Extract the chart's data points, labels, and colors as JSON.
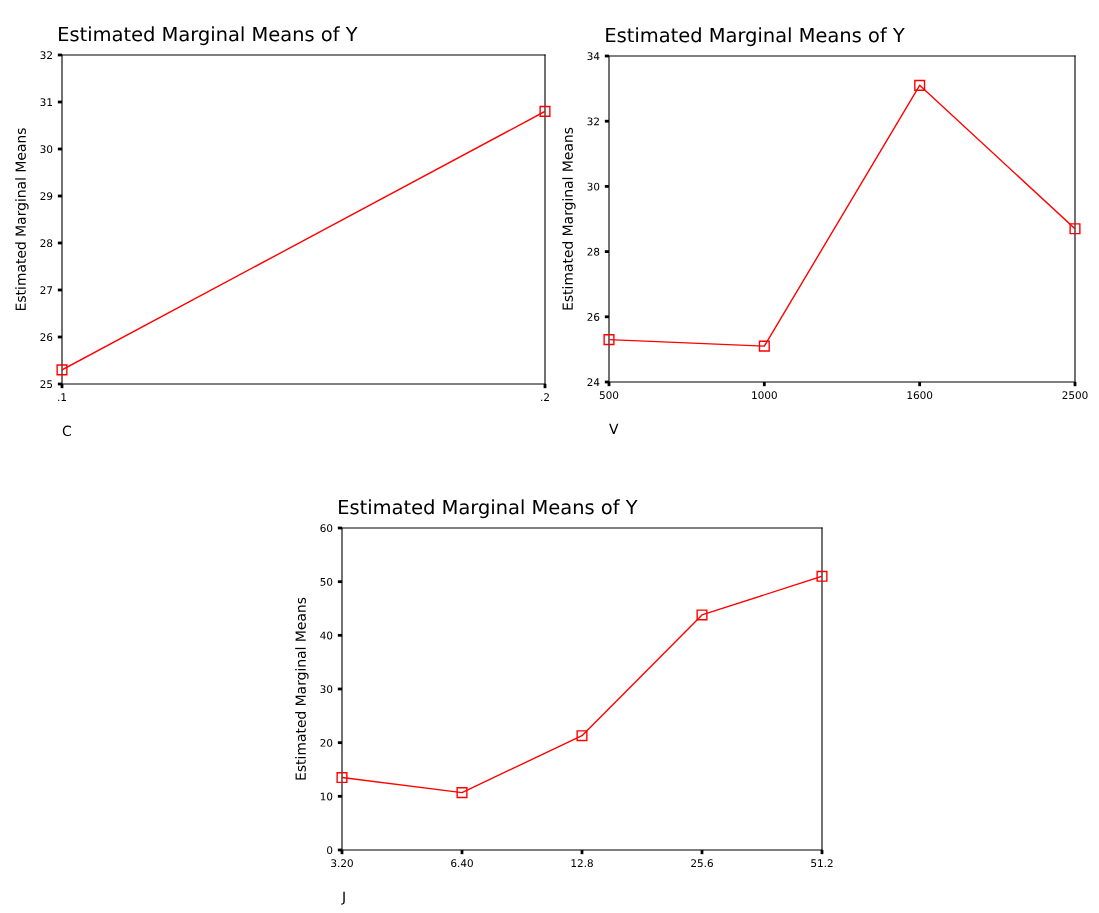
{
  "chart_data": [
    {
      "type": "line",
      "title": "Estimated Marginal Means of Y",
      "xlabel": "C",
      "ylabel": "Estimated Marginal Means",
      "x": [
        0.1,
        0.2
      ],
      "xlim": [
        0.1,
        0.2
      ],
      "xticks": [
        {
          "value": 0.1,
          "label": ".1"
        },
        {
          "value": 0.2,
          "label": ".2"
        }
      ],
      "series": [
        {
          "color": "#ff0000",
          "values": [
            25.3,
            30.8
          ]
        }
      ],
      "ylim": [
        25,
        32
      ],
      "yticks": [
        25,
        26,
        27,
        28,
        29,
        30,
        31,
        32
      ],
      "marker": "square",
      "grid": false,
      "legend": false
    },
    {
      "type": "line",
      "title": "Estimated Marginal Means of Y",
      "xlabel": "V",
      "ylabel": "Estimated Marginal Means",
      "categories": [
        "500",
        "1000",
        "1600",
        "2500"
      ],
      "series": [
        {
          "color": "#ff0000",
          "values": [
            25.3,
            25.1,
            33.1,
            28.7
          ]
        }
      ],
      "ylim": [
        24,
        34
      ],
      "yticks": [
        24,
        26,
        28,
        30,
        32,
        34
      ],
      "marker": "square",
      "grid": false,
      "legend": false
    },
    {
      "type": "line",
      "title": "Estimated Marginal Means of Y",
      "xlabel": "J",
      "ylabel": "Estimated Marginal Means",
      "categories": [
        "3.20",
        "6.40",
        "12.8",
        "25.6",
        "51.2"
      ],
      "series": [
        {
          "color": "#ff0000",
          "values": [
            13.5,
            10.7,
            21.3,
            43.8,
            51.0
          ]
        }
      ],
      "ylim": [
        0,
        60
      ],
      "yticks": [
        0,
        10,
        20,
        30,
        40,
        50,
        60
      ],
      "marker": "square",
      "grid": false,
      "legend": false
    }
  ]
}
